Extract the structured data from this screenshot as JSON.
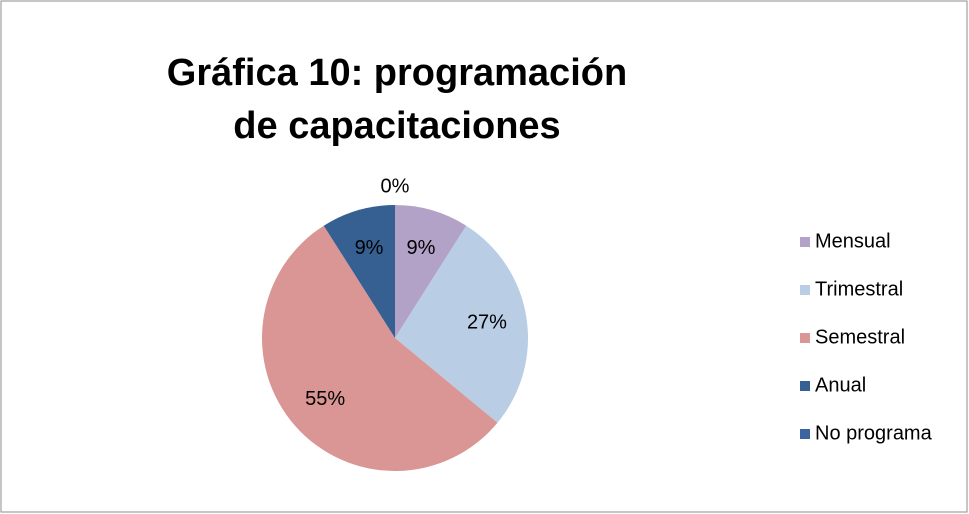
{
  "chart_data": {
    "type": "pie",
    "title": "Gráfica 10: programación de capacitaciones",
    "categories": [
      "Mensual",
      "Trimestral",
      "Semestral",
      "Anual",
      "No programa"
    ],
    "values": [
      9,
      27,
      55,
      9,
      0
    ],
    "value_labels": [
      "9%",
      "27%",
      "55%",
      "9%",
      "0%"
    ],
    "colors": [
      "#b3a2c7",
      "#b9cde5",
      "#d99694",
      "#376092",
      "#3c64a0"
    ],
    "legend": "right"
  }
}
